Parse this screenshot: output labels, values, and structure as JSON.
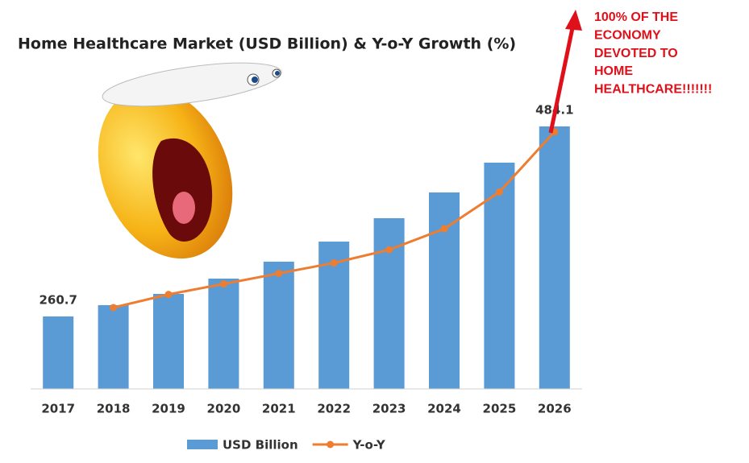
{
  "chart_data": {
    "type": "bar",
    "title": "Home Healthcare Market  (USD Billion) & Y-o-Y Growth (%)",
    "annotation": [
      "100% OF THE",
      "ECONOMY",
      "DEVOTED TO",
      "HOME",
      "HEALTHCARE!!!!!!!"
    ],
    "categories": [
      "2017",
      "2018",
      "2019",
      "2020",
      "2021",
      "2022",
      "2023",
      "2024",
      "2025",
      "2026"
    ],
    "series": [
      {
        "name": "USD Billion",
        "type": "bar",
        "color": "#5b9bd5",
        "values": [
          260.7,
          274,
          287.2,
          305.2,
          325.1,
          348.7,
          376.2,
          406.5,
          441.5,
          484.1
        ],
        "value_labels": [
          "260.7",
          null,
          null,
          null,
          null,
          null,
          null,
          null,
          null,
          "484.1"
        ]
      },
      {
        "name": "Y-o-Y",
        "type": "line",
        "axis": "y2",
        "color": "#ed7d31",
        "values": [
          null,
          3.1,
          3.6,
          4.0,
          4.4,
          4.8,
          5.3,
          6.1,
          7.5,
          9.8
        ]
      }
    ],
    "ylim": [
      175.5,
      484.1
    ],
    "y2lim": [
      0,
      10
    ],
    "legend": "bottom"
  }
}
